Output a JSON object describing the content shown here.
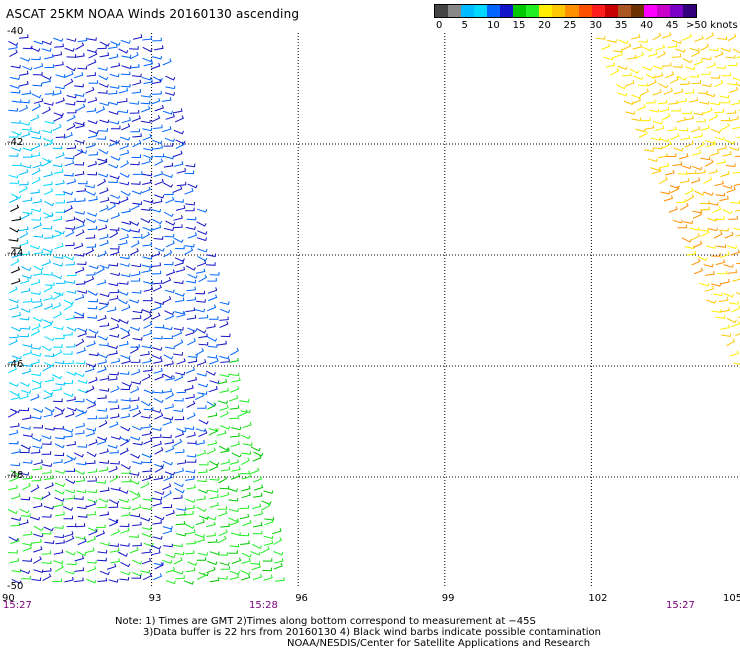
{
  "title": "ASCAT 25KM NOAA Winds 20160130 ascending",
  "colorbar": {
    "colors": [
      "#444444",
      "#888888",
      "#00bbff",
      "#00d8ff",
      "#0066ff",
      "#1414c8",
      "#00c800",
      "#22ee22",
      "#ffee00",
      "#ffc800",
      "#ff9000",
      "#ff5000",
      "#ff1e1e",
      "#c80000",
      "#aa5522",
      "#6e3200",
      "#ff00ff",
      "#c800c8",
      "#7a00c8",
      "#320078"
    ],
    "labels": [
      "0",
      "5",
      "10",
      "15",
      "20",
      "25",
      "30",
      "35",
      "40",
      "45"
    ],
    "units": ">50 knots"
  },
  "map": {
    "lat_labels": [
      "-40",
      "-42",
      "-44",
      "-46",
      "-48",
      "-50"
    ],
    "lon_labels": [
      "90",
      "93",
      "96",
      "99",
      "102",
      "105"
    ],
    "time_labels": [
      "15:27",
      "15:28",
      "15:27"
    ],
    "lat_range": [
      -50,
      -40
    ],
    "lon_range": [
      90,
      105
    ],
    "grid": "dotted"
  },
  "notes": {
    "line1": "Note: 1) Times are GMT 2)Times along bottom correspond to measurement at −45S",
    "line2": "3)Data buffer is 22 hrs from 20160130 4) Black wind barbs indicate possible contamination",
    "line3": "NOAA/NESDIS/Center for Satellite Applications and Research"
  }
}
